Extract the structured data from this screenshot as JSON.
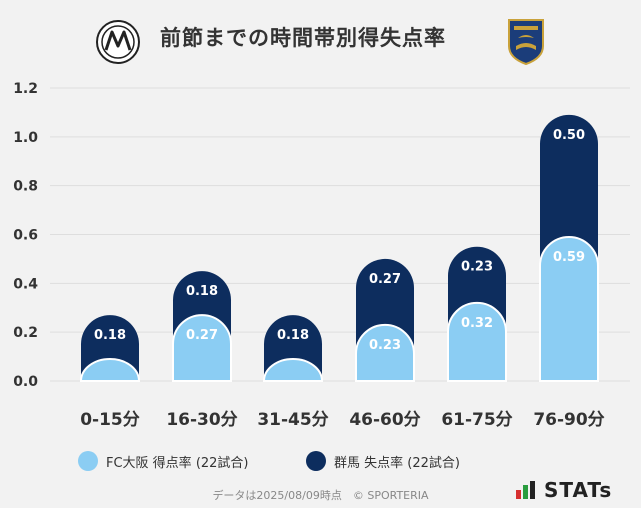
{
  "header": {
    "title": "前節までの時間帯別得失点率"
  },
  "legend": {
    "left_label": "FC大阪 得点率 (22試合)",
    "right_label": "群馬 失点率 (22試合)"
  },
  "footer": {
    "note": "データは2025/08/09時点　© SPORTERIA",
    "brand": "STATs"
  },
  "colors": {
    "light": "#8bcdf3",
    "dark": "#0d2d5e",
    "background": "#f2f2f2"
  },
  "chart_data": {
    "type": "bar",
    "stacked": true,
    "categories": [
      "0-15分",
      "16-30分",
      "31-45分",
      "46-60分",
      "61-75分",
      "76-90分"
    ],
    "series": [
      {
        "name": "FC大阪 得点率 (22試合)",
        "values": [
          0.09,
          0.27,
          0.09,
          0.23,
          0.32,
          0.59
        ],
        "labels": [
          "",
          "0.27",
          "",
          "0.23",
          "0.32",
          "0.59"
        ]
      },
      {
        "name": "群馬 失点率 (22試合)",
        "values": [
          0.18,
          0.18,
          0.18,
          0.27,
          0.23,
          0.5
        ],
        "labels": [
          "0.18",
          "0.18",
          "0.18",
          "0.27",
          "0.23",
          "0.50"
        ]
      }
    ],
    "yticks": [
      "0.0",
      "0.2",
      "0.4",
      "0.6",
      "0.8",
      "1.0",
      "1.2"
    ],
    "ylim": [
      0,
      1.2
    ],
    "grid": true,
    "legend_position": "bottom"
  }
}
